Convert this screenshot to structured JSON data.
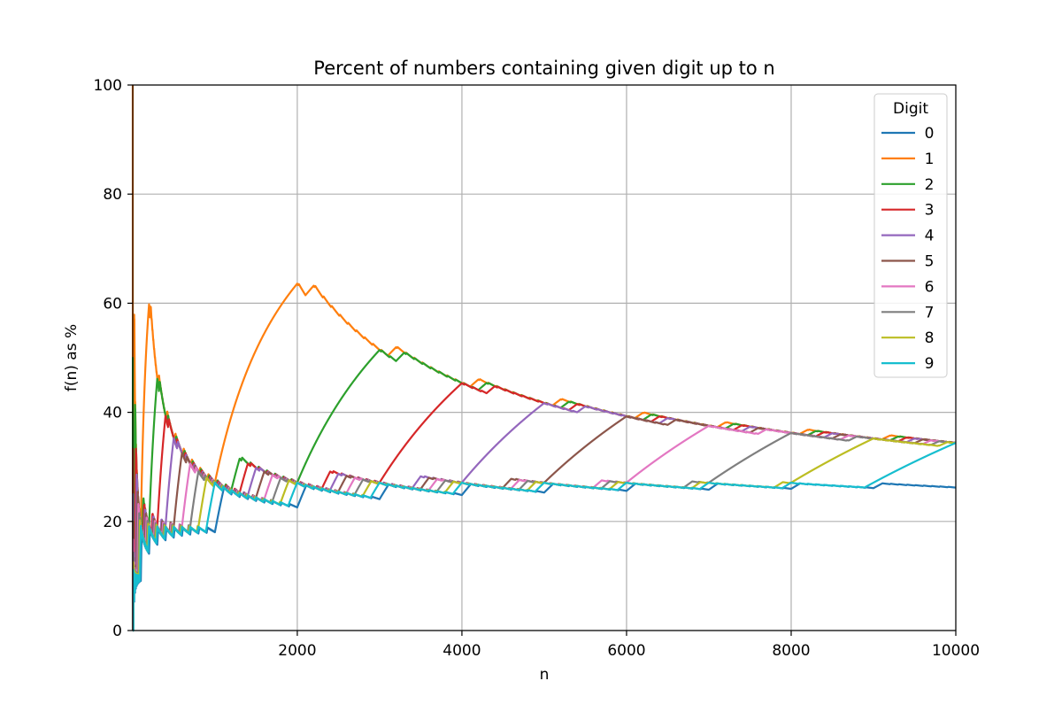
{
  "chart_data": {
    "type": "line",
    "title": "Percent of numbers containing given digit up to n",
    "xlabel": "n",
    "ylabel": "f(n) as %",
    "xlim": [
      1,
      10000
    ],
    "ylim": [
      0,
      100
    ],
    "xticks": [
      2000,
      4000,
      6000,
      8000,
      10000
    ],
    "yticks": [
      0,
      20,
      40,
      60,
      80,
      100
    ],
    "grid": true,
    "legend": {
      "title": "Digit",
      "placement": "top-right"
    },
    "series": [
      {
        "name": "0",
        "color": "#1f77b4"
      },
      {
        "name": "1",
        "color": "#ff7f0e"
      },
      {
        "name": "2",
        "color": "#2ca02c"
      },
      {
        "name": "3",
        "color": "#d62728"
      },
      {
        "name": "4",
        "color": "#9467bd"
      },
      {
        "name": "5",
        "color": "#8c564b"
      },
      {
        "name": "6",
        "color": "#e377c2"
      },
      {
        "name": "7",
        "color": "#7f7f7f"
      },
      {
        "name": "8",
        "color": "#bcbd22"
      },
      {
        "name": "9",
        "color": "#17becf"
      }
    ],
    "series_definition": "f(n) = percent of integers 1..n that contain the digit",
    "n_max": 10000
  }
}
